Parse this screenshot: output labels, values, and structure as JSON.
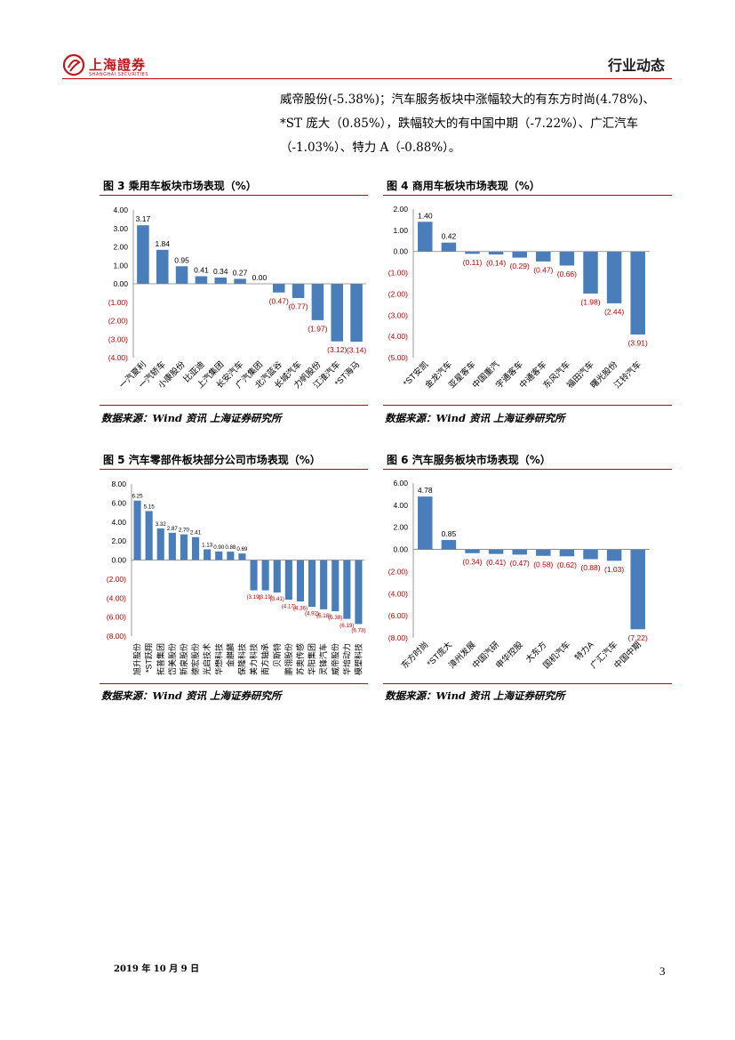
{
  "header": {
    "logo_text": "上海證券",
    "logo_sub": "SHANGHAI SECURITIES",
    "section_title": "行业动态"
  },
  "intro": {
    "lines": [
      "威帝股份(-5.38%)；汽车服务板块中涨幅较大的有东方时尚(4.78%)、",
      "*ST 庞大（0.85%），跌幅较大的有中国中期（-7.22%）、广汇汽车",
      "（-1.03%）、特力 A（-0.88%）。"
    ]
  },
  "colors": {
    "bar": "#4a7ebb",
    "negative_label": "#c00000",
    "rule": "#c00000"
  },
  "figures": [
    {
      "title": "图 3 乘用车板块市场表现（%）",
      "source": "数据来源：Wind 资讯 上海证券研究所"
    },
    {
      "title": "图 4 商用车板块市场表现（%）",
      "source": "数据来源：Wind 资讯 上海证券研究所"
    },
    {
      "title": "图 5 汽车零部件板块部分公司市场表现（%）",
      "source": "数据来源：Wind 资讯 上海证券研究所"
    },
    {
      "title": "图 6 汽车服务板块市场表现（%）",
      "source": "数据来源：Wind 资讯 上海证券研究所"
    }
  ],
  "chart_data": [
    {
      "type": "bar",
      "categories": [
        "一汽夏利",
        "一汽轿车",
        "小康股份",
        "比亚迪",
        "上汽集团",
        "长安汽车",
        "广汽集团",
        "北汽蓝谷",
        "长城汽车",
        "力帆股份",
        "江淮汽车",
        "*ST海马"
      ],
      "values": [
        3.17,
        1.84,
        0.95,
        0.41,
        0.34,
        0.27,
        0.0,
        -0.47,
        -0.77,
        -1.97,
        -3.12,
        -3.14
      ],
      "labels": [
        "3.17",
        "1.84",
        "0.95",
        "0.41",
        "0.34",
        "0.27",
        "0.00",
        "(0.47)",
        "(0.77)",
        "(1.97)",
        "(3.12)",
        "(3.14)"
      ],
      "yticks": [
        "4.00",
        "3.00",
        "2.00",
        "1.00",
        "0.00",
        "(1.00)",
        "(2.00)",
        "(3.00)",
        "(4.00)"
      ],
      "ylim": [
        -4,
        4
      ]
    },
    {
      "type": "bar",
      "categories": [
        "*ST安凯",
        "金龙汽车",
        "亚星客车",
        "中国重汽",
        "宇通客车",
        "中通客车",
        "东风汽车",
        "福田汽车",
        "曙光股份",
        "江铃汽车"
      ],
      "values": [
        1.4,
        0.42,
        -0.11,
        -0.14,
        -0.29,
        -0.47,
        -0.66,
        -1.98,
        -2.44,
        -3.91
      ],
      "labels": [
        "1.40",
        "0.42",
        "(0.11)",
        "(0.14)",
        "(0.29)",
        "(0.47)",
        "(0.66)",
        "(1.98)",
        "(2.44)",
        "(3.91)"
      ],
      "yticks": [
        "2.00",
        "1.00",
        "0.00",
        "(1.00)",
        "(2.00)",
        "(3.00)",
        "(4.00)",
        "(5.00)"
      ],
      "ylim": [
        -5,
        2
      ]
    },
    {
      "type": "bar",
      "categories": [
        "旭升股份",
        "*ST跃翔",
        "拓普集团",
        "岱美股份",
        "新泉股份",
        "德宏股份",
        "光启技术",
        "华懋科技",
        "金麒麟",
        "保隆科技",
        "美力科技",
        "南方轴承",
        "贝斯特",
        "鹏翎股份",
        "苏奥传感",
        "华阳集团",
        "灵锋汽车",
        "威帝股份",
        "华培动力",
        "模塑科技"
      ],
      "values": [
        6.25,
        5.15,
        3.32,
        2.87,
        2.7,
        2.41,
        1.13,
        0.9,
        0.88,
        0.69,
        -3.19,
        -3.19,
        -3.41,
        -4.17,
        -4.36,
        -4.92,
        -5.18,
        -5.38,
        -6.19,
        -6.73
      ],
      "labels": [
        "6.25",
        "5.15",
        "3.32",
        "2.87",
        "2.70",
        "2.41",
        "1.13",
        "0.90",
        "0.88",
        "0.69",
        "(3.19)",
        "(3.19)",
        "(3.41)",
        "(4.17)",
        "(4.36)",
        "(4.92)",
        "(5.18)",
        "(5.38)",
        "(6.19)",
        "(6.73)"
      ],
      "yticks": [
        "8.00",
        "6.00",
        "4.00",
        "2.00",
        "0.00",
        "(2.00)",
        "(4.00)",
        "(6.00)",
        "(8.00)"
      ],
      "ylim": [
        -8,
        8
      ]
    },
    {
      "type": "bar",
      "categories": [
        "东方时尚",
        "*ST庞大",
        "漳州发展",
        "中国汽研",
        "申华控股",
        "大东方",
        "国机汽车",
        "特力A",
        "广汇汽车",
        "中国中期"
      ],
      "values": [
        4.78,
        0.85,
        -0.34,
        -0.41,
        -0.47,
        -0.58,
        -0.62,
        -0.88,
        -1.03,
        -7.22
      ],
      "labels": [
        "4.78",
        "0.85",
        "(0.34)",
        "(0.41)",
        "(0.47)",
        "(0.58)",
        "(0.62)",
        "(0.88)",
        "(1.03)",
        "(7.22)"
      ],
      "yticks": [
        "6.00",
        "4.00",
        "2.00",
        "0.00",
        "(2.00)",
        "(4.00)",
        "(6.00)",
        "(8.00)"
      ],
      "ylim": [
        -8,
        6
      ]
    }
  ],
  "footer": {
    "date": "2019 年 10 月 9 日",
    "page": "3"
  }
}
